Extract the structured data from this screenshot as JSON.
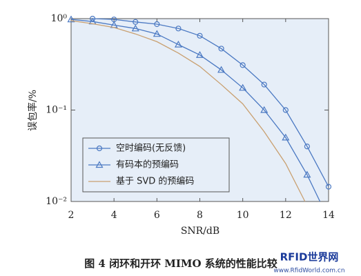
{
  "chart_data": {
    "type": "line",
    "caption": "图 4   闭环和开环 MIMO 系统的性能比较",
    "watermark": "RFID世界网",
    "watermark_url": "www.RfidWorld.com.cn",
    "xlabel": "SNR/dB",
    "ylabel": "误包率/%",
    "xlim": [
      2,
      14
    ],
    "xticks": [
      2,
      4,
      6,
      8,
      10,
      12,
      14
    ],
    "ylim": [
      0.01,
      1
    ],
    "log_y": true,
    "yticks": [
      {
        "value": 1,
        "label": "10⁰"
      },
      {
        "value": 0.1,
        "label": "10⁻¹"
      },
      {
        "value": 0.01,
        "label": "10⁻²"
      }
    ],
    "legend_position": "lower left",
    "series": [
      {
        "name": "空时编码(无反馈)",
        "color": "#4a78c2",
        "marker": "circle",
        "x": [
          3,
          4,
          5,
          6,
          7,
          8,
          9,
          10,
          11,
          12,
          13,
          14
        ],
        "values": [
          1.0,
          0.98,
          0.92,
          0.87,
          0.78,
          0.65,
          0.47,
          0.31,
          0.19,
          0.1,
          0.04,
          0.0145
        ]
      },
      {
        "name": "有码本的预编码",
        "color": "#4a78c2",
        "marker": "triangle",
        "x": [
          2,
          3,
          4,
          5,
          6,
          7,
          8,
          9,
          10,
          11,
          12,
          13,
          13.6
        ],
        "values": [
          0.98,
          0.93,
          0.85,
          0.78,
          0.68,
          0.52,
          0.4,
          0.275,
          0.175,
          0.1,
          0.05,
          0.0196,
          0.01
        ]
      },
      {
        "name": "基于 SVD 的预编码",
        "color": "#c9a070",
        "marker": null,
        "x": [
          2,
          3,
          4,
          5,
          6,
          7,
          8,
          9,
          10,
          11,
          12,
          12.9
        ],
        "values": [
          0.95,
          0.88,
          0.8,
          0.68,
          0.56,
          0.42,
          0.3,
          0.19,
          0.117,
          0.058,
          0.026,
          0.01
        ]
      }
    ]
  }
}
